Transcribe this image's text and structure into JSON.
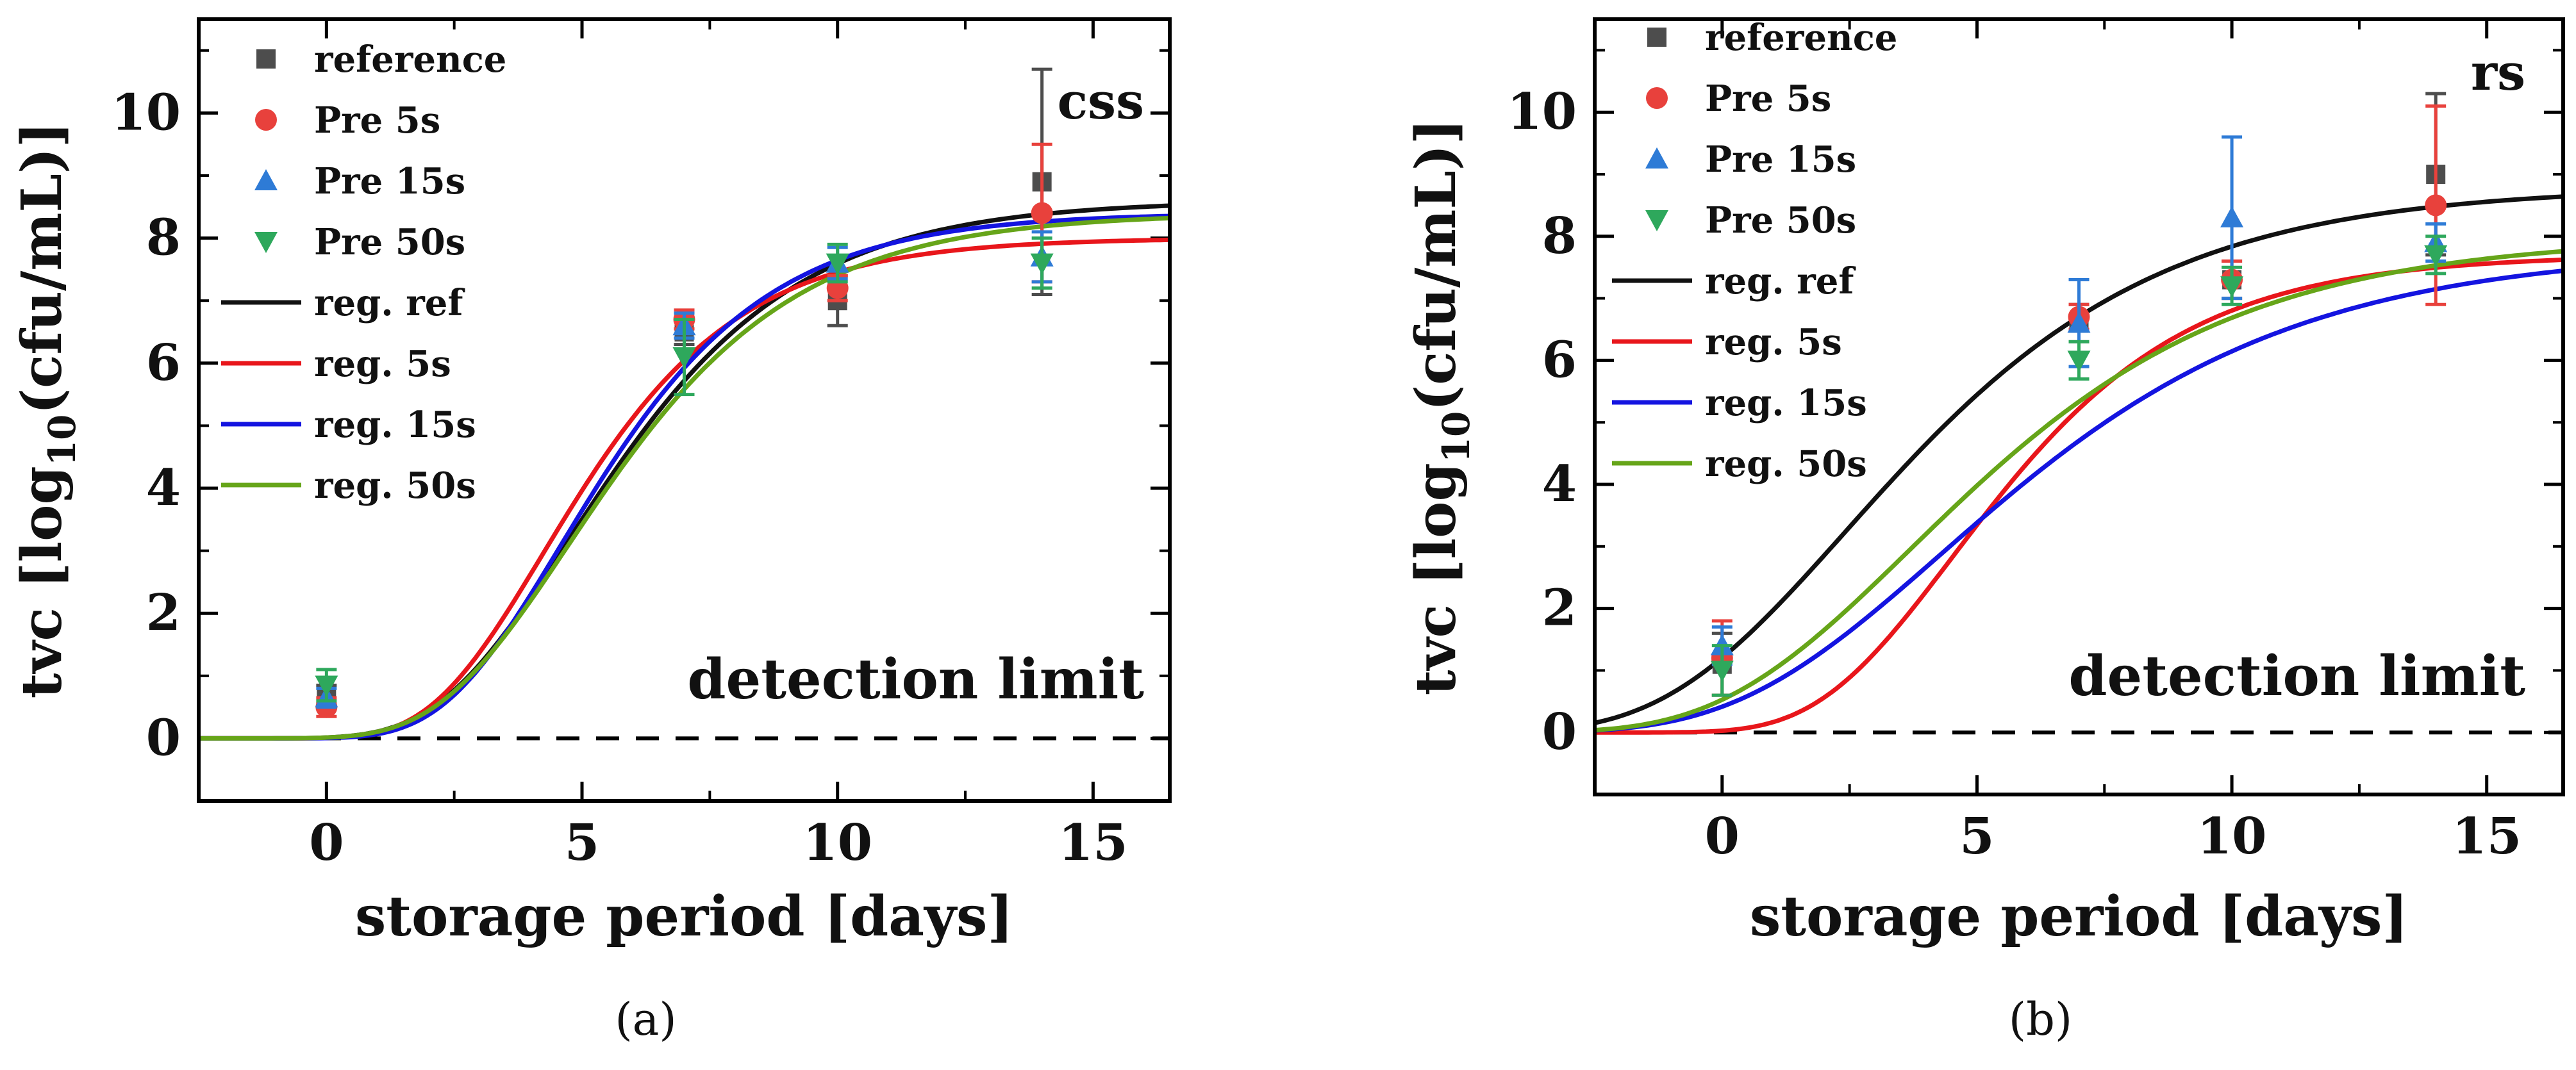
{
  "chart_data": [
    {
      "panel_label": "(a)",
      "type": "scatter",
      "title": "",
      "annotation": "css",
      "detection_label": "detection limit",
      "xlabel": "storage period [days]",
      "ylabel": {
        "prefix": "tvc [log",
        "sub": "10",
        "suffix": "(cfu/mL)]"
      },
      "xlim": [
        -2.5,
        16.5
      ],
      "ylim": [
        -1,
        11.5
      ],
      "xticks": [
        0,
        5,
        10,
        15
      ],
      "yticks": [
        0,
        2,
        4,
        6,
        8,
        10
      ],
      "detection_limit": 0,
      "legend_position": "top-left",
      "series": [
        {
          "name": "reference",
          "marker": "square",
          "color": "#4d4d4d",
          "points": [
            {
              "x": 0,
              "y": 0.7,
              "err": 0.15
            },
            {
              "x": 7,
              "y": 6.5,
              "err": 0.2
            },
            {
              "x": 10,
              "y": 7.0,
              "err": 0.4
            },
            {
              "x": 14,
              "y": 8.9,
              "err": 1.8
            }
          ]
        },
        {
          "name": "Pre 5s",
          "marker": "circle",
          "color": "#e8413c",
          "points": [
            {
              "x": 0,
              "y": 0.5,
              "err": 0.15
            },
            {
              "x": 7,
              "y": 6.7,
              "err": 0.15
            },
            {
              "x": 10,
              "y": 7.2,
              "err": 0.2
            },
            {
              "x": 14,
              "y": 8.4,
              "err": 1.1
            }
          ]
        },
        {
          "name": "Pre 15s",
          "marker": "triangle-up",
          "color": "#2e7bd6",
          "points": [
            {
              "x": 0,
              "y": 0.65,
              "err": 0.15
            },
            {
              "x": 7,
              "y": 6.6,
              "err": 0.2
            },
            {
              "x": 10,
              "y": 7.6,
              "err": 0.25
            },
            {
              "x": 14,
              "y": 7.7,
              "err": 0.4
            }
          ]
        },
        {
          "name": "Pre 50s",
          "marker": "triangle-down",
          "color": "#2ea85c",
          "points": [
            {
              "x": 0,
              "y": 0.85,
              "err": 0.25
            },
            {
              "x": 7,
              "y": 6.1,
              "err": 0.6
            },
            {
              "x": 10,
              "y": 7.6,
              "err": 0.3
            },
            {
              "x": 14,
              "y": 7.6,
              "err": 0.4
            }
          ]
        }
      ],
      "curves": [
        {
          "name": "reg. ref",
          "color": "#111111",
          "A": 8.6,
          "mu": 1.25,
          "lag": 2.2,
          "y0": 0
        },
        {
          "name": "reg. 5s",
          "color": "#e8161b",
          "A": 8.0,
          "mu": 1.35,
          "lag": 2.05,
          "y0": 0
        },
        {
          "name": "reg. 15s",
          "color": "#1414e0",
          "A": 8.4,
          "mu": 1.35,
          "lag": 2.3,
          "y0": 0
        },
        {
          "name": "reg. 50s",
          "color": "#66a519",
          "A": 8.4,
          "mu": 1.22,
          "lag": 2.2,
          "y0": 0
        }
      ]
    },
    {
      "panel_label": "(b)",
      "type": "scatter",
      "title": "",
      "annotation": "rs",
      "detection_label": "detection limit",
      "xlabel": "storage period [days]",
      "ylabel": {
        "prefix": "tvc [log",
        "sub": "10",
        "suffix": "(cfu/mL)]"
      },
      "xlim": [
        -2.5,
        16.5
      ],
      "ylim": [
        -1,
        11.5
      ],
      "xticks": [
        0,
        5,
        10,
        15
      ],
      "yticks": [
        0,
        2,
        4,
        6,
        8,
        10
      ],
      "detection_limit": 0,
      "legend_position": "top-left",
      "series": [
        {
          "name": "reference",
          "marker": "square",
          "color": "#4d4d4d",
          "points": [
            {
              "x": 0,
              "y": 1.1,
              "err": 0.5
            },
            {
              "x": 7,
              "y": 6.6,
              "err": 0.3
            },
            {
              "x": 10,
              "y": 7.3,
              "err": 0.3
            },
            {
              "x": 14,
              "y": 9.0,
              "err": 1.3
            }
          ]
        },
        {
          "name": "Pre 5s",
          "marker": "circle",
          "color": "#e8413c",
          "points": [
            {
              "x": 0,
              "y": 1.2,
              "err": 0.6
            },
            {
              "x": 7,
              "y": 6.7,
              "err": 0.2
            },
            {
              "x": 10,
              "y": 7.3,
              "err": 0.3
            },
            {
              "x": 14,
              "y": 8.5,
              "err": 1.6
            }
          ]
        },
        {
          "name": "Pre 15s",
          "marker": "triangle-up",
          "color": "#2e7bd6",
          "points": [
            {
              "x": 0,
              "y": 1.4,
              "err": 0.3
            },
            {
              "x": 7,
              "y": 6.6,
              "err": 0.7
            },
            {
              "x": 10,
              "y": 8.3,
              "err": 1.3
            },
            {
              "x": 14,
              "y": 7.9,
              "err": 0.3
            }
          ]
        },
        {
          "name": "Pre 50s",
          "marker": "triangle-down",
          "color": "#2ea85c",
          "points": [
            {
              "x": 0,
              "y": 1.0,
              "err": 0.4
            },
            {
              "x": 7,
              "y": 6.0,
              "err": 0.3
            },
            {
              "x": 10,
              "y": 7.2,
              "err": 0.3
            },
            {
              "x": 14,
              "y": 7.7,
              "err": 0.3
            }
          ]
        }
      ],
      "curves": [
        {
          "name": "reg. ref",
          "color": "#111111",
          "A": 8.8,
          "mu": 0.92,
          "lag": -1.1,
          "y0": 0
        },
        {
          "name": "reg. 5s",
          "color": "#e8161b",
          "A": 7.7,
          "mu": 1.08,
          "lag": 1.9,
          "y0": 0
        },
        {
          "name": "reg. 15s",
          "color": "#1414e0",
          "A": 7.8,
          "mu": 0.72,
          "lag": 0.3,
          "y0": 0
        },
        {
          "name": "reg. 50s",
          "color": "#66a519",
          "A": 8.0,
          "mu": 0.8,
          "lag": 0.0,
          "y0": 0
        }
      ]
    }
  ]
}
